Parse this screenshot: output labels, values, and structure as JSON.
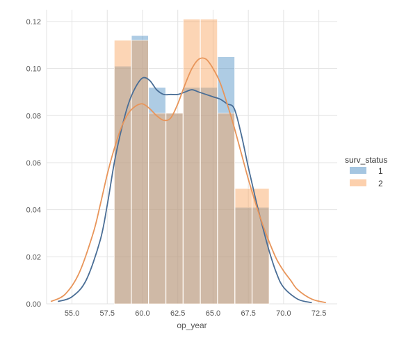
{
  "chart_data": {
    "type": "bar",
    "title": "",
    "xlabel": "op_year",
    "ylabel": "",
    "xlim": [
      53.2,
      73.8
    ],
    "ylim": [
      0,
      0.125
    ],
    "grid": true,
    "xticks": [
      "55.0",
      "57.5",
      "60.0",
      "62.5",
      "65.0",
      "67.5",
      "70.0",
      "72.5"
    ],
    "xtick_values": [
      55,
      57.5,
      60,
      62.5,
      65,
      67.5,
      70,
      72.5
    ],
    "yticks": [
      "0.00",
      "0.02",
      "0.04",
      "0.06",
      "0.08",
      "0.10",
      "0.12"
    ],
    "ytick_values": [
      0,
      0.02,
      0.04,
      0.06,
      0.08,
      0.1,
      0.12
    ],
    "legend": {
      "title": "surv_status",
      "placement": "right",
      "entries": [
        "1",
        "2"
      ]
    },
    "series": [
      {
        "name": "1",
        "color": "#4c8dc4",
        "line_color": "#4a6e96",
        "histogram": {
          "bin_edges": [
            58,
            59.22,
            60.44,
            61.67,
            62.89,
            64.11,
            65.33,
            66.56,
            67.78,
            69
          ],
          "values": [
            0.101,
            0.114,
            0.092,
            0.081,
            0.092,
            0.092,
            0.105,
            0.041,
            0.041
          ]
        },
        "kde": {
          "x": [
            54.0,
            55.0,
            56.0,
            57.0,
            57.5,
            58.0,
            58.5,
            59.0,
            59.5,
            60.0,
            60.5,
            61.0,
            61.5,
            62.0,
            62.5,
            63.0,
            63.5,
            64.0,
            64.5,
            65.0,
            65.5,
            66.0,
            66.5,
            67.0,
            67.5,
            68.0,
            68.5,
            69.0,
            69.5,
            70.0,
            71.0,
            72.0
          ],
          "y": [
            0.001,
            0.003,
            0.01,
            0.027,
            0.042,
            0.06,
            0.074,
            0.085,
            0.092,
            0.096,
            0.095,
            0.091,
            0.089,
            0.089,
            0.089,
            0.09,
            0.091,
            0.09,
            0.089,
            0.088,
            0.087,
            0.085,
            0.083,
            0.072,
            0.058,
            0.045,
            0.033,
            0.022,
            0.013,
            0.007,
            0.002,
            0.0005
          ]
        }
      },
      {
        "name": "2",
        "color": "#f9a15c",
        "line_color": "#e8955a",
        "histogram": {
          "bin_edges": [
            58,
            59.22,
            60.44,
            61.67,
            62.89,
            64.11,
            65.33,
            66.56,
            67.78,
            69
          ],
          "values": [
            0.112,
            0.112,
            0.081,
            0.081,
            0.121,
            0.121,
            0.081,
            0.049,
            0.049
          ]
        },
        "kde": {
          "x": [
            53.5,
            54.5,
            55.5,
            56.5,
            57.0,
            57.5,
            58.0,
            58.5,
            59.0,
            59.5,
            60.0,
            60.5,
            61.0,
            61.5,
            62.0,
            62.5,
            63.0,
            63.5,
            64.0,
            64.5,
            65.0,
            65.5,
            66.0,
            66.5,
            67.0,
            67.5,
            68.0,
            68.5,
            69.0,
            69.5,
            70.0,
            70.5,
            71.0,
            72.0,
            73.0
          ],
          "y": [
            0.001,
            0.004,
            0.013,
            0.03,
            0.042,
            0.055,
            0.066,
            0.075,
            0.081,
            0.084,
            0.085,
            0.083,
            0.08,
            0.078,
            0.079,
            0.085,
            0.093,
            0.1,
            0.104,
            0.104,
            0.1,
            0.094,
            0.085,
            0.075,
            0.064,
            0.053,
            0.043,
            0.034,
            0.026,
            0.019,
            0.014,
            0.01,
            0.006,
            0.002,
            0.0005
          ]
        }
      }
    ]
  }
}
